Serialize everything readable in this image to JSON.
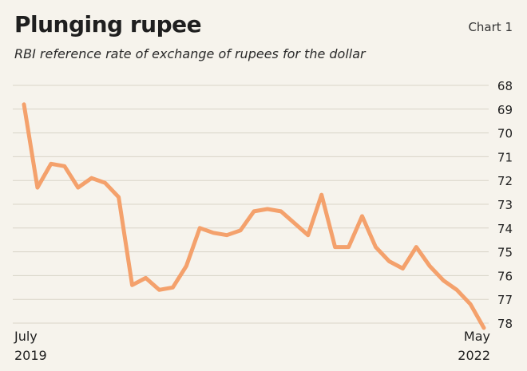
{
  "header": {
    "title": "Plunging rupee",
    "chart_label": "Chart 1",
    "subtitle": "RBI reference rate of exchange of rupees for the dollar"
  },
  "colors": {
    "background": "#f6f3ec",
    "line": "#f4a16c",
    "grid": "#d9d4c8",
    "text": "#1f1f1f"
  },
  "chart_data": {
    "type": "line",
    "title": "Plunging rupee",
    "subtitle": "RBI reference rate of exchange of rupees for the dollar",
    "xlabel": "",
    "ylabel": "",
    "y_inverted": true,
    "ylim": [
      68,
      78
    ],
    "yticks": [
      "68",
      "69",
      "70",
      "71",
      "72",
      "73",
      "74",
      "75",
      "76",
      "77",
      "78"
    ],
    "grid": "horizontal",
    "x_labels": [
      {
        "line1": "July",
        "line2": "2019"
      },
      {
        "line1": "May",
        "line2": "2022"
      }
    ],
    "series": [
      {
        "values": [
          68.8,
          72.3,
          71.3,
          71.4,
          72.3,
          71.9,
          72.1,
          72.7,
          76.4,
          76.1,
          76.6,
          76.5,
          75.6,
          74.0,
          74.2,
          74.3,
          74.1,
          73.3,
          73.2,
          73.3,
          73.8,
          74.3,
          72.6,
          74.8,
          74.8,
          73.5,
          74.8,
          75.4,
          75.7,
          74.8,
          75.6,
          76.2,
          76.6,
          77.2,
          78.2
        ]
      }
    ]
  }
}
